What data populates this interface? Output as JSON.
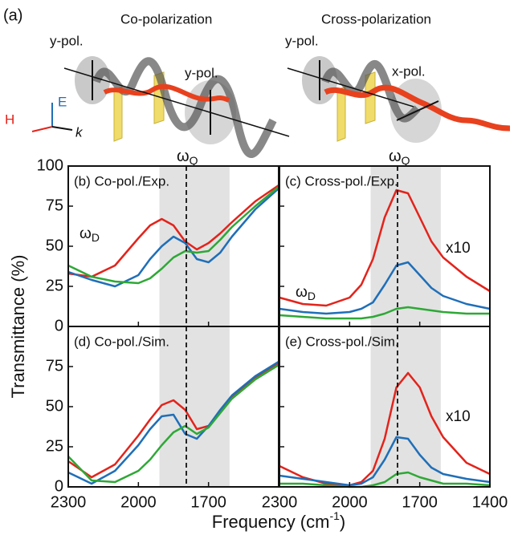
{
  "figure": {
    "panel_a": {
      "label": "(a)",
      "co_title": "Co-polarization",
      "cross_title": "Cross-polarization",
      "co_in": "y-pol.",
      "co_out": "y-pol.",
      "cross_in": "y-pol.",
      "cross_out": "x-pol.",
      "axis_e": "E",
      "axis_h": "H",
      "axis_k": "k"
    },
    "omega_q": {
      "text": "ω",
      "sub": "Q"
    },
    "ylabel": "Transmittance (%)",
    "xlabel": {
      "text": "Frequency (cm",
      "sup": "-1",
      "end": ")"
    }
  },
  "chart_data": [
    {
      "type": "line",
      "panel_label": "(b) Co-pol./Exp.",
      "omega_label": {
        "text": "ω",
        "sub": "D"
      },
      "xlim": [
        2300,
        1400
      ],
      "ylim": [
        0,
        100
      ],
      "xticks": [
        2300,
        2000,
        1700
      ],
      "yticks": [
        0,
        25,
        50,
        75,
        100
      ],
      "tick_labels": {
        "x": false,
        "y": true
      },
      "band": [
        1910,
        1610
      ],
      "marker_x": 1795,
      "x": [
        2300,
        2200,
        2100,
        2000,
        1950,
        1900,
        1850,
        1800,
        1750,
        1700,
        1650,
        1600,
        1500,
        1400
      ],
      "series": [
        {
          "color": "#e3231b",
          "values": [
            33,
            31,
            38,
            55,
            63,
            67,
            63,
            53,
            48,
            52,
            58,
            65,
            78,
            88
          ]
        },
        {
          "color": "#1f6fb8",
          "values": [
            34,
            29,
            25,
            32,
            42,
            50,
            56,
            52,
            42,
            40,
            46,
            56,
            73,
            86
          ]
        },
        {
          "color": "#2ea836",
          "values": [
            38,
            31,
            28,
            27,
            30,
            36,
            43,
            47,
            46,
            47,
            54,
            62,
            75,
            87
          ]
        }
      ]
    },
    {
      "type": "line",
      "panel_label": "(c) Cross-pol./Exp.",
      "omega_label": {
        "text": "ω",
        "sub": "D"
      },
      "scale_label": "x10",
      "xlim": [
        2300,
        1400
      ],
      "ylim": [
        0,
        100
      ],
      "xticks": [
        2300,
        2000,
        1700,
        1400
      ],
      "yticks": [
        0,
        25,
        50,
        75,
        100
      ],
      "tick_labels": {
        "x": false,
        "y": false
      },
      "band": [
        1910,
        1610
      ],
      "marker_x": 1795,
      "x": [
        2300,
        2200,
        2100,
        2000,
        1950,
        1900,
        1850,
        1800,
        1750,
        1700,
        1650,
        1600,
        1500,
        1400
      ],
      "series": [
        {
          "color": "#e3231b",
          "values": [
            18,
            14,
            13,
            18,
            26,
            42,
            68,
            85,
            83,
            68,
            53,
            43,
            31,
            22
          ]
        },
        {
          "color": "#1f6fb8",
          "values": [
            11,
            9,
            8,
            9,
            11,
            15,
            26,
            38,
            40,
            32,
            24,
            19,
            14,
            11
          ]
        },
        {
          "color": "#2ea836",
          "values": [
            7,
            6,
            5,
            5,
            5,
            6,
            8,
            11,
            12,
            11,
            10,
            9,
            8,
            8
          ]
        }
      ]
    },
    {
      "type": "line",
      "panel_label": "(d) Co-pol./Sim.",
      "xlim": [
        2300,
        1400
      ],
      "ylim": [
        0,
        100
      ],
      "xticks": [
        2300,
        2000,
        1700
      ],
      "yticks": [
        0,
        25,
        50,
        75
      ],
      "tick_labels": {
        "x": true,
        "y": true
      },
      "band": [
        1910,
        1610
      ],
      "marker_x": 1795,
      "x": [
        2300,
        2200,
        2100,
        2000,
        1950,
        1900,
        1850,
        1800,
        1750,
        1700,
        1650,
        1600,
        1500,
        1400
      ],
      "series": [
        {
          "color": "#e3231b",
          "values": [
            16,
            6,
            14,
            32,
            42,
            51,
            54,
            48,
            36,
            38,
            47,
            56,
            68,
            77
          ]
        },
        {
          "color": "#1f6fb8",
          "values": [
            9,
            2,
            10,
            26,
            36,
            44,
            45,
            33,
            30,
            38,
            48,
            57,
            69,
            78
          ]
        },
        {
          "color": "#2ea836",
          "values": [
            19,
            4,
            3,
            10,
            17,
            26,
            34,
            38,
            33,
            37,
            46,
            55,
            67,
            76
          ]
        }
      ]
    },
    {
      "type": "line",
      "panel_label": "(e) Cross-pol./Sim.",
      "scale_label": "x10",
      "xlim": [
        2300,
        1400
      ],
      "ylim": [
        0,
        100
      ],
      "xticks": [
        2300,
        2000,
        1700,
        1400
      ],
      "yticks": [
        0,
        25,
        50,
        75
      ],
      "tick_labels": {
        "x": true,
        "y": false
      },
      "band": [
        1910,
        1610
      ],
      "marker_x": 1795,
      "x": [
        2300,
        2200,
        2100,
        2000,
        1950,
        1900,
        1850,
        1800,
        1750,
        1700,
        1650,
        1600,
        1500,
        1400
      ],
      "series": [
        {
          "color": "#e3231b",
          "values": [
            13,
            6,
            2,
            1,
            3,
            10,
            30,
            62,
            71,
            62,
            44,
            31,
            15,
            8
          ]
        },
        {
          "color": "#1f6fb8",
          "values": [
            7,
            5,
            3,
            1,
            2,
            6,
            17,
            31,
            30,
            20,
            12,
            8,
            5,
            3
          ]
        },
        {
          "color": "#2ea836",
          "values": [
            2,
            2,
            1,
            0,
            0,
            1,
            3,
            8,
            9,
            6,
            4,
            2,
            2,
            1
          ]
        }
      ]
    }
  ]
}
